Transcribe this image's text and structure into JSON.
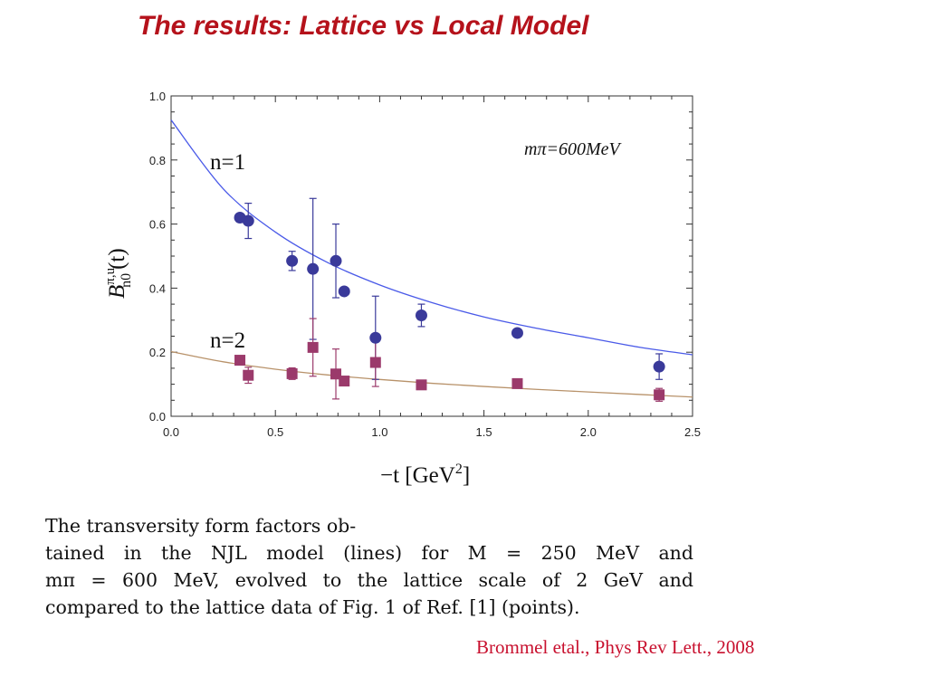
{
  "slide": {
    "title": "The results: Lattice vs Local Model",
    "caption_lines": [
      "The transversity form factors ob-",
      "tained in the NJL model (lines) for M = 250 MeV and",
      "mπ = 600 MeV, evolved to the lattice scale of 2 GeV and",
      "compared to the lattice data of Fig. 1 of Ref. [1] (points)."
    ],
    "citation": "Brommel etal., Phys Rev Lett., 2008"
  },
  "chart_data": {
    "type": "scatter",
    "title": "",
    "xlabel_base": "−t [GeV",
    "xlabel_sup": "2",
    "xlabel_end": "]",
    "ylabel_main": "B",
    "ylabel_sup": "π,u",
    "ylabel_sub": "n0",
    "ylabel_end": "(t)",
    "xlim": [
      0.0,
      2.5
    ],
    "ylim": [
      0.0,
      1.0
    ],
    "x_ticks": [
      "0.0",
      "0.5",
      "1.0",
      "1.5",
      "2.0",
      "2.5"
    ],
    "y_ticks": [
      "0.0",
      "0.2",
      "0.4",
      "0.6",
      "0.8",
      "1.0"
    ],
    "grid": false,
    "annotation_mass": "mπ=600MeV",
    "series": [
      {
        "name": "n=1",
        "marker": "circle",
        "color": "#3a3a9a",
        "points": [
          {
            "x": 0.33,
            "y": 0.62,
            "err": 0.0
          },
          {
            "x": 0.37,
            "y": 0.61,
            "err": 0.055
          },
          {
            "x": 0.58,
            "y": 0.485,
            "err": 0.03
          },
          {
            "x": 0.68,
            "y": 0.46,
            "err": 0.22
          },
          {
            "x": 0.79,
            "y": 0.485,
            "err": 0.115
          },
          {
            "x": 0.83,
            "y": 0.39,
            "err": 0.0
          },
          {
            "x": 0.98,
            "y": 0.245,
            "err": 0.13
          },
          {
            "x": 1.2,
            "y": 0.315,
            "err": 0.035
          },
          {
            "x": 1.66,
            "y": 0.26,
            "err": 0.0
          },
          {
            "x": 2.34,
            "y": 0.155,
            "err": 0.04
          }
        ],
        "curve": {
          "color": "#4a5ae8",
          "x": [
            0.0,
            0.25,
            0.5,
            0.75,
            1.0,
            1.25,
            1.5,
            1.75,
            2.0,
            2.25,
            2.5
          ],
          "y": [
            0.925,
            0.71,
            0.575,
            0.48,
            0.41,
            0.355,
            0.31,
            0.275,
            0.245,
            0.215,
            0.192
          ]
        }
      },
      {
        "name": "n=2",
        "marker": "square",
        "color": "#9b3a6b",
        "points": [
          {
            "x": 0.33,
            "y": 0.175,
            "err": 0.0
          },
          {
            "x": 0.37,
            "y": 0.128,
            "err": 0.025
          },
          {
            "x": 0.58,
            "y": 0.133,
            "err": 0.018
          },
          {
            "x": 0.68,
            "y": 0.215,
            "err": 0.09
          },
          {
            "x": 0.79,
            "y": 0.132,
            "err": 0.078
          },
          {
            "x": 0.83,
            "y": 0.11,
            "err": 0.0
          },
          {
            "x": 0.98,
            "y": 0.168,
            "err": 0.075
          },
          {
            "x": 1.2,
            "y": 0.098,
            "err": 0.0
          },
          {
            "x": 1.66,
            "y": 0.102,
            "err": 0.0
          },
          {
            "x": 2.34,
            "y": 0.067,
            "err": 0.02
          }
        ],
        "curve": {
          "color": "#b8926a",
          "x": [
            0.0,
            0.25,
            0.5,
            0.75,
            1.0,
            1.25,
            1.5,
            1.75,
            2.0,
            2.25,
            2.5
          ],
          "y": [
            0.202,
            0.17,
            0.147,
            0.129,
            0.115,
            0.103,
            0.093,
            0.084,
            0.076,
            0.068,
            0.06
          ]
        }
      }
    ]
  }
}
